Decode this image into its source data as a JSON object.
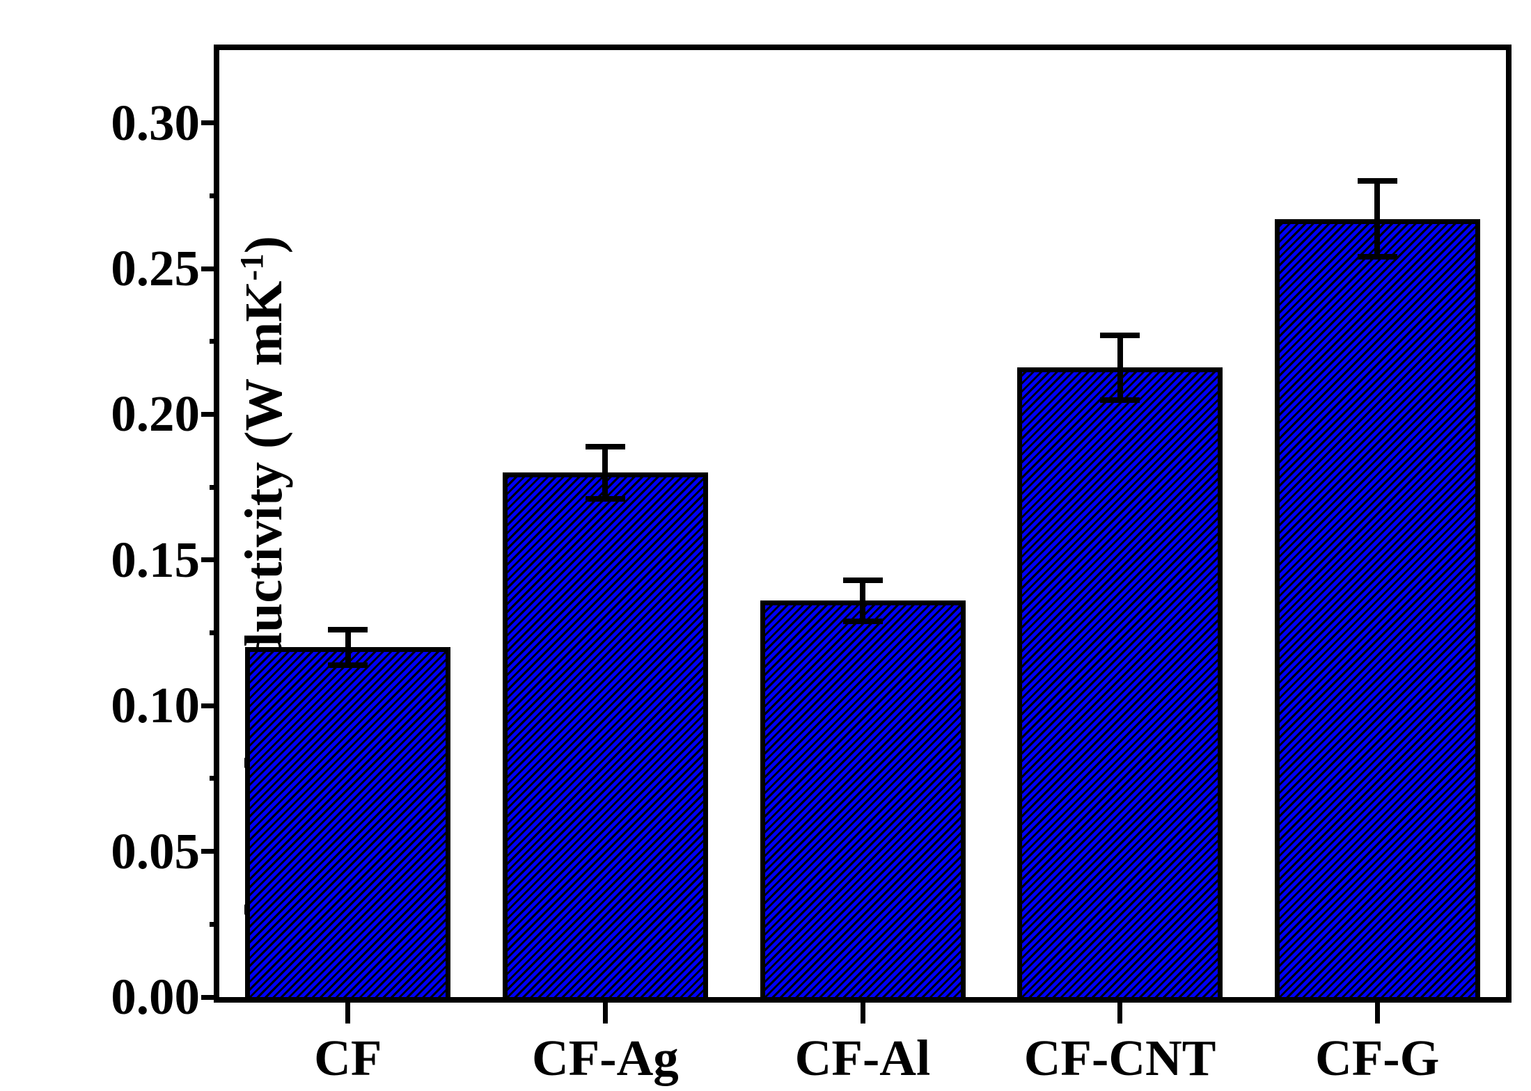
{
  "figure": {
    "background": "#ffffff",
    "axis_color": "#000000"
  },
  "axis": {
    "ylabel_prefix": "Thermal conductivity (W mK",
    "ylabel_sup": "-1",
    "ylabel_suffix": ")",
    "y_tick_labels": [
      "0.00",
      "0.05",
      "0.10",
      "0.15",
      "0.20",
      "0.25",
      "0.30"
    ]
  },
  "chart_data": {
    "type": "bar",
    "categories": [
      "CF",
      "CF-Ag",
      "CF-Al",
      "CF-CNT",
      "CF-G"
    ],
    "values": [
      0.12,
      0.18,
      0.136,
      0.216,
      0.267
    ],
    "errors": [
      0.006,
      0.009,
      0.007,
      0.011,
      0.013
    ],
    "title": "",
    "xlabel": "",
    "ylabel": "Thermal conductivity (W mK⁻¹)",
    "ylim": [
      0,
      0.325
    ],
    "y_major_tick": 0.05,
    "y_minor_tick": 0.025,
    "grid": false,
    "legend": false,
    "bar_fill_color": "#0000f8",
    "bar_edge_color": "#000000",
    "hatch": "diagonal-45-dashed-black",
    "error_bar_color": "#000000",
    "ticks_direction": "out"
  }
}
